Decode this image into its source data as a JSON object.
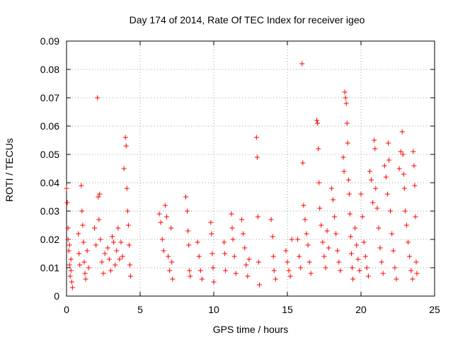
{
  "chart_data": {
    "type": "scatter",
    "title": "Day 174 of 2014, Rate Of TEC Index for receiver igeo",
    "xlabel": "GPS time / hours",
    "ylabel": "ROTI / TECUs",
    "xlim": [
      0,
      25
    ],
    "ylim": [
      0,
      0.09
    ],
    "x_ticks": [
      0,
      5,
      10,
      15,
      20,
      25
    ],
    "x_tick_labels": [
      "0",
      "5",
      "10",
      "15",
      "20",
      "25"
    ],
    "y_ticks": [
      0,
      0.01,
      0.02,
      0.03,
      0.04,
      0.05,
      0.06,
      0.07,
      0.08,
      0.09
    ],
    "y_tick_labels": [
      "0",
      "0.01",
      "0.02",
      "0.03",
      "0.04",
      "0.05",
      "0.06",
      "0.07",
      "0.08",
      "0.09"
    ],
    "grid": true,
    "marker": "+",
    "marker_color": "#ff0000",
    "series": [
      {
        "name": "ROTI",
        "points": [
          [
            0.0,
            0.038
          ],
          [
            0.05,
            0.033
          ],
          [
            0.1,
            0.024
          ],
          [
            0.15,
            0.016
          ],
          [
            0.2,
            0.011
          ],
          [
            0.25,
            0.007
          ],
          [
            0.3,
            0.013
          ],
          [
            0.35,
            0.005
          ],
          [
            0.1,
            0.02
          ],
          [
            0.2,
            0.018
          ],
          [
            0.3,
            0.009
          ],
          [
            0.4,
            0.003
          ],
          [
            0.8,
            0.022
          ],
          [
            0.85,
            0.015
          ],
          [
            0.9,
            0.011
          ],
          [
            1.0,
            0.039
          ],
          [
            1.05,
            0.03
          ],
          [
            1.1,
            0.025
          ],
          [
            1.15,
            0.019
          ],
          [
            1.2,
            0.012
          ],
          [
            1.25,
            0.008
          ],
          [
            1.3,
            0.006
          ],
          [
            1.4,
            0.016
          ],
          [
            1.5,
            0.01
          ],
          [
            1.9,
            0.024
          ],
          [
            2.0,
            0.018
          ],
          [
            2.1,
            0.07
          ],
          [
            2.15,
            0.035
          ],
          [
            2.2,
            0.027
          ],
          [
            2.25,
            0.036
          ],
          [
            2.3,
            0.02
          ],
          [
            2.4,
            0.012
          ],
          [
            2.5,
            0.008
          ],
          [
            2.6,
            0.015
          ],
          [
            2.8,
            0.017
          ],
          [
            2.9,
            0.013
          ],
          [
            3.0,
            0.009
          ],
          [
            3.1,
            0.021
          ],
          [
            3.2,
            0.019
          ],
          [
            3.3,
            0.011
          ],
          [
            3.4,
            0.016
          ],
          [
            3.5,
            0.024
          ],
          [
            3.6,
            0.013
          ],
          [
            3.7,
            0.019
          ],
          [
            3.8,
            0.014
          ],
          [
            3.9,
            0.045
          ],
          [
            4.0,
            0.056
          ],
          [
            4.05,
            0.053
          ],
          [
            4.1,
            0.038
          ],
          [
            4.15,
            0.03
          ],
          [
            4.2,
            0.025
          ],
          [
            4.25,
            0.018
          ],
          [
            4.3,
            0.011
          ],
          [
            4.35,
            0.007
          ],
          [
            6.3,
            0.029
          ],
          [
            6.4,
            0.026
          ],
          [
            6.5,
            0.02
          ],
          [
            6.6,
            0.016
          ],
          [
            6.7,
            0.032
          ],
          [
            6.8,
            0.028
          ],
          [
            6.9,
            0.014
          ],
          [
            7.0,
            0.009
          ],
          [
            7.1,
            0.024
          ],
          [
            7.15,
            0.012
          ],
          [
            7.2,
            0.006
          ],
          [
            8.1,
            0.035
          ],
          [
            8.2,
            0.03
          ],
          [
            8.25,
            0.023
          ],
          [
            8.3,
            0.018
          ],
          [
            8.35,
            0.009
          ],
          [
            8.4,
            0.007
          ],
          [
            8.9,
            0.019
          ],
          [
            9.0,
            0.014
          ],
          [
            9.1,
            0.009
          ],
          [
            9.2,
            0.006
          ],
          [
            9.8,
            0.026
          ],
          [
            9.85,
            0.022
          ],
          [
            9.9,
            0.015
          ],
          [
            9.95,
            0.01
          ],
          [
            10.0,
            0.005
          ],
          [
            10.7,
            0.019
          ],
          [
            10.75,
            0.015
          ],
          [
            10.8,
            0.009
          ],
          [
            11.2,
            0.029
          ],
          [
            11.25,
            0.024
          ],
          [
            11.3,
            0.02
          ],
          [
            11.4,
            0.014
          ],
          [
            11.5,
            0.008
          ],
          [
            11.9,
            0.027
          ],
          [
            12.0,
            0.022
          ],
          [
            12.1,
            0.017
          ],
          [
            12.2,
            0.011
          ],
          [
            12.3,
            0.007
          ],
          [
            12.4,
            0.013
          ],
          [
            12.9,
            0.056
          ],
          [
            12.95,
            0.049
          ],
          [
            13.0,
            0.028
          ],
          [
            13.05,
            0.012
          ],
          [
            13.1,
            0.004
          ],
          [
            13.9,
            0.027
          ],
          [
            14.0,
            0.021
          ],
          [
            14.05,
            0.014
          ],
          [
            14.1,
            0.009
          ],
          [
            14.2,
            0.006
          ],
          [
            14.9,
            0.016
          ],
          [
            15.0,
            0.012
          ],
          [
            15.1,
            0.009
          ],
          [
            15.2,
            0.007
          ],
          [
            15.3,
            0.02
          ],
          [
            15.7,
            0.02
          ],
          [
            15.8,
            0.014
          ],
          [
            15.9,
            0.01
          ],
          [
            16.0,
            0.082
          ],
          [
            16.05,
            0.047
          ],
          [
            16.1,
            0.032
          ],
          [
            16.2,
            0.027
          ],
          [
            16.3,
            0.022
          ],
          [
            16.4,
            0.018
          ],
          [
            16.5,
            0.012
          ],
          [
            16.6,
            0.008
          ],
          [
            17.0,
            0.062
          ],
          [
            17.05,
            0.061
          ],
          [
            17.1,
            0.052
          ],
          [
            17.15,
            0.04
          ],
          [
            17.2,
            0.031
          ],
          [
            17.3,
            0.025
          ],
          [
            17.4,
            0.019
          ],
          [
            17.5,
            0.014
          ],
          [
            17.6,
            0.01
          ],
          [
            17.7,
            0.023
          ],
          [
            17.8,
            0.017
          ],
          [
            18.0,
            0.038
          ],
          [
            18.1,
            0.034
          ],
          [
            18.2,
            0.028
          ],
          [
            18.3,
            0.022
          ],
          [
            18.4,
            0.016
          ],
          [
            18.5,
            0.012
          ],
          [
            18.6,
            0.009
          ],
          [
            18.8,
            0.049
          ],
          [
            18.85,
            0.044
          ],
          [
            18.9,
            0.072
          ],
          [
            18.95,
            0.07
          ],
          [
            19.0,
            0.068
          ],
          [
            19.05,
            0.061
          ],
          [
            19.1,
            0.054
          ],
          [
            19.15,
            0.041
          ],
          [
            19.2,
            0.036
          ],
          [
            19.25,
            0.029
          ],
          [
            19.3,
            0.021
          ],
          [
            19.35,
            0.015
          ],
          [
            19.4,
            0.01
          ],
          [
            19.45,
            0.006
          ],
          [
            19.6,
            0.024
          ],
          [
            19.7,
            0.018
          ],
          [
            19.8,
            0.013
          ],
          [
            19.9,
            0.009
          ],
          [
            20.0,
            0.036
          ],
          [
            20.1,
            0.028
          ],
          [
            20.2,
            0.019
          ],
          [
            20.3,
            0.014
          ],
          [
            20.4,
            0.01
          ],
          [
            20.5,
            0.007
          ],
          [
            20.6,
            0.044
          ],
          [
            20.7,
            0.041
          ],
          [
            20.8,
            0.033
          ],
          [
            20.9,
            0.055
          ],
          [
            20.95,
            0.052
          ],
          [
            21.0,
            0.038
          ],
          [
            21.1,
            0.031
          ],
          [
            21.2,
            0.024
          ],
          [
            21.3,
            0.017
          ],
          [
            21.4,
            0.012
          ],
          [
            21.5,
            0.008
          ],
          [
            21.6,
            0.046
          ],
          [
            21.7,
            0.042
          ],
          [
            21.8,
            0.036
          ],
          [
            21.85,
            0.054
          ],
          [
            21.9,
            0.048
          ],
          [
            22.0,
            0.03
          ],
          [
            22.1,
            0.022
          ],
          [
            22.2,
            0.016
          ],
          [
            22.3,
            0.01
          ],
          [
            22.4,
            0.006
          ],
          [
            22.6,
            0.045
          ],
          [
            22.7,
            0.051
          ],
          [
            22.8,
            0.058
          ],
          [
            22.85,
            0.05
          ],
          [
            22.9,
            0.043
          ],
          [
            22.95,
            0.038
          ],
          [
            23.0,
            0.03
          ],
          [
            23.1,
            0.025
          ],
          [
            23.2,
            0.019
          ],
          [
            23.3,
            0.014
          ],
          [
            23.4,
            0.009
          ],
          [
            23.5,
            0.006
          ],
          [
            23.55,
            0.051
          ],
          [
            23.6,
            0.046
          ],
          [
            23.65,
            0.039
          ],
          [
            23.7,
            0.028
          ],
          [
            23.75,
            0.012
          ],
          [
            23.8,
            0.008
          ]
        ]
      }
    ]
  }
}
